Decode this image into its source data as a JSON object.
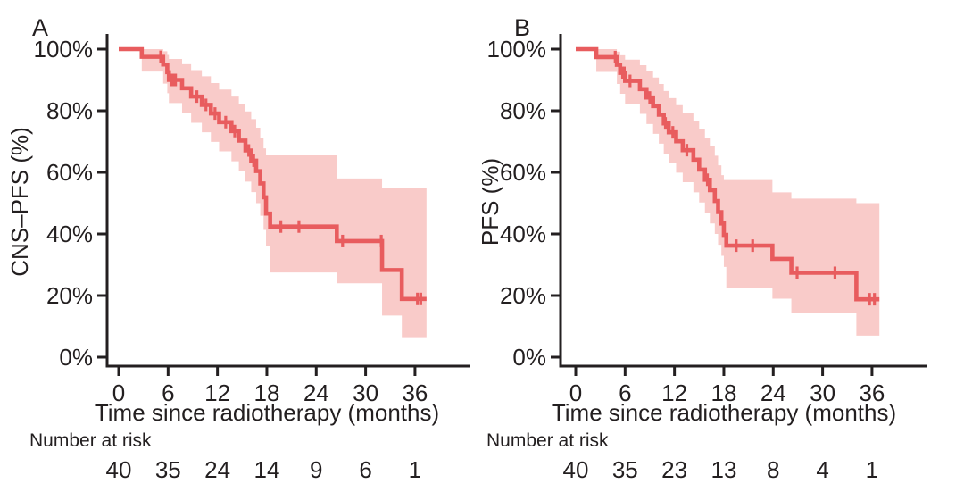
{
  "figure": {
    "risk_label": "Number at risk",
    "x_axis_label": "Time since radiotherapy (months)"
  },
  "colors": {
    "line": "#e85c5e",
    "ci_band": "#f9cbc9",
    "axis": "#231f20",
    "text": "#231f20"
  },
  "x_axis": {
    "ticks": [
      0,
      6,
      12,
      18,
      24,
      30,
      36
    ],
    "tick_labels": [
      "0",
      "6",
      "12",
      "18",
      "24",
      "30",
      "36"
    ]
  },
  "y_axis": {
    "tick_values": [
      100,
      80,
      60,
      40,
      20,
      0
    ],
    "tick_labels": [
      "100%",
      "80%",
      "60%",
      "40%",
      "20%",
      "0%"
    ]
  },
  "chart_data": [
    {
      "type": "line",
      "subtype": "kaplan-meier",
      "tag": "A",
      "ylabel": "CNS–PFS (%)",
      "xlabel": "Time since radiotherapy (months)",
      "xlim": [
        0,
        40
      ],
      "ylim": [
        0,
        100
      ],
      "t_end": 37.4,
      "steps": [
        [
          0,
          100
        ],
        [
          2.8,
          97.5
        ],
        [
          5.4,
          95
        ],
        [
          5.9,
          92.5
        ],
        [
          6.1,
          90
        ],
        [
          7.7,
          87.3
        ],
        [
          8.8,
          84.6
        ],
        [
          10.1,
          81.9
        ],
        [
          11.2,
          79.1
        ],
        [
          12.2,
          76.3
        ],
        [
          13.7,
          73.4
        ],
        [
          14.6,
          70.3
        ],
        [
          15.4,
          67.1
        ],
        [
          16.1,
          63.8
        ],
        [
          16.7,
          60.4
        ],
        [
          17.2,
          56.4
        ],
        [
          17.6,
          51.9
        ],
        [
          17.9,
          46.6
        ],
        [
          18.4,
          42.4
        ],
        [
          26.5,
          37.7
        ],
        [
          32.0,
          28.3
        ],
        [
          34.4,
          18.9
        ]
      ],
      "censors": [
        [
          5.1,
          97.5
        ],
        [
          6.4,
          90
        ],
        [
          6.6,
          90
        ],
        [
          6.9,
          90
        ],
        [
          9.5,
          84.6
        ],
        [
          10.6,
          81.9
        ],
        [
          11.7,
          79.1
        ],
        [
          13.0,
          76.3
        ],
        [
          14.1,
          73.4
        ],
        [
          15.8,
          67.1
        ],
        [
          16.4,
          63.8
        ],
        [
          19.7,
          42.4
        ],
        [
          21.9,
          42.4
        ],
        [
          27.2,
          37.7
        ],
        [
          31.9,
          37.7
        ],
        [
          36.3,
          18.9
        ],
        [
          36.7,
          18.9
        ]
      ],
      "ci_band": [
        [
          2.8,
          92.7,
          100
        ],
        [
          5.4,
          88.8,
          99.3
        ],
        [
          5.9,
          85.7,
          98.1
        ],
        [
          6.1,
          82.5,
          96.8
        ],
        [
          7.7,
          79.3,
          95.1
        ],
        [
          8.8,
          76.1,
          93.2
        ],
        [
          10.1,
          73.0,
          91.2
        ],
        [
          11.2,
          69.9,
          89.0
        ],
        [
          12.2,
          66.8,
          86.9
        ],
        [
          13.7,
          63.6,
          84.6
        ],
        [
          14.6,
          60.3,
          82.2
        ],
        [
          15.4,
          57.0,
          79.8
        ],
        [
          16.1,
          53.6,
          77.3
        ],
        [
          16.7,
          50.0,
          74.5
        ],
        [
          17.2,
          45.9,
          71.3
        ],
        [
          17.6,
          41.3,
          67.8
        ],
        [
          17.9,
          36.0,
          65.5
        ],
        [
          18.4,
          27.5,
          65.5
        ],
        [
          26.5,
          24.0,
          58.0
        ],
        [
          32.0,
          13.5,
          55.0
        ],
        [
          34.4,
          6.5,
          55.0
        ]
      ],
      "risk_times": [
        0,
        6,
        12,
        18,
        24,
        30,
        36
      ],
      "number_at_risk": [
        40,
        35,
        24,
        14,
        9,
        6,
        1
      ]
    },
    {
      "type": "line",
      "subtype": "kaplan-meier",
      "tag": "B",
      "ylabel": "PFS (%)",
      "xlabel": "Time since radiotherapy (months)",
      "xlim": [
        0,
        40
      ],
      "ylim": [
        0,
        100
      ],
      "t_end": 36.9,
      "steps": [
        [
          0,
          100
        ],
        [
          2.5,
          97.4
        ],
        [
          5.0,
          94.9
        ],
        [
          5.4,
          92.3
        ],
        [
          6.0,
          89.7
        ],
        [
          7.8,
          87.0
        ],
        [
          8.6,
          84.3
        ],
        [
          9.4,
          81.5
        ],
        [
          10.1,
          78.7
        ],
        [
          10.7,
          75.9
        ],
        [
          11.3,
          73.0
        ],
        [
          12.2,
          70.1
        ],
        [
          13.0,
          67.2
        ],
        [
          14.3,
          64.1
        ],
        [
          15.0,
          60.9
        ],
        [
          15.7,
          57.6
        ],
        [
          16.3,
          54.2
        ],
        [
          16.9,
          50.7
        ],
        [
          17.3,
          47.1
        ],
        [
          17.7,
          43.4
        ],
        [
          18.0,
          39.7
        ],
        [
          18.3,
          36.2
        ],
        [
          23.9,
          31.9
        ],
        [
          26.2,
          27.4
        ],
        [
          34.1,
          18.8
        ]
      ],
      "censors": [
        [
          4.8,
          97.4
        ],
        [
          5.7,
          92.3
        ],
        [
          5.9,
          92.3
        ],
        [
          6.6,
          89.7
        ],
        [
          9.0,
          84.3
        ],
        [
          10.9,
          75.9
        ],
        [
          11.8,
          73.0
        ],
        [
          13.5,
          67.2
        ],
        [
          16.0,
          57.6
        ],
        [
          19.5,
          36.2
        ],
        [
          21.5,
          36.2
        ],
        [
          26.9,
          27.4
        ],
        [
          31.5,
          27.4
        ],
        [
          35.7,
          18.8
        ],
        [
          36.3,
          18.8
        ]
      ],
      "ci_band": [
        [
          2.5,
          92.6,
          100
        ],
        [
          5.0,
          88.7,
          99.2
        ],
        [
          5.4,
          85.5,
          98.0
        ],
        [
          6.0,
          82.3,
          96.6
        ],
        [
          7.8,
          79.0,
          94.8
        ],
        [
          8.6,
          75.7,
          92.9
        ],
        [
          9.4,
          72.5,
          90.8
        ],
        [
          10.1,
          69.3,
          88.7
        ],
        [
          10.7,
          66.1,
          86.4
        ],
        [
          11.3,
          63.0,
          84.1
        ],
        [
          12.2,
          59.9,
          81.8
        ],
        [
          13.0,
          56.8,
          79.4
        ],
        [
          14.3,
          53.5,
          76.8
        ],
        [
          15.0,
          50.2,
          74.1
        ],
        [
          15.7,
          46.8,
          71.3
        ],
        [
          16.3,
          43.4,
          68.4
        ],
        [
          16.9,
          40.0,
          65.4
        ],
        [
          17.3,
          36.5,
          62.3
        ],
        [
          17.7,
          32.9,
          59.1
        ],
        [
          18.0,
          29.3,
          57.5
        ],
        [
          18.3,
          22.5,
          57.5
        ],
        [
          23.9,
          19.0,
          53.5
        ],
        [
          26.2,
          14.5,
          51.5
        ],
        [
          34.1,
          7.0,
          50.0
        ]
      ],
      "risk_times": [
        0,
        6,
        12,
        18,
        24,
        30,
        36
      ],
      "number_at_risk": [
        40,
        35,
        23,
        13,
        8,
        4,
        1
      ]
    }
  ]
}
